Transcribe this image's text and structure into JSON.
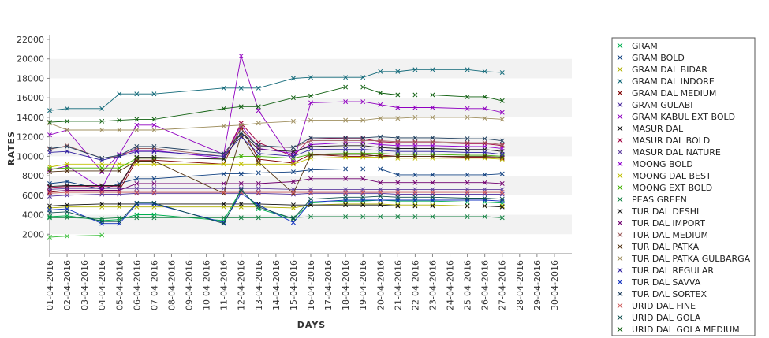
{
  "chart_data": {
    "type": "line",
    "title": "",
    "xlabel": "DAYS",
    "ylabel": "RATES",
    "ylim": [
      0,
      22000
    ],
    "yticks": [
      2000,
      4000,
      6000,
      8000,
      10000,
      12000,
      14000,
      16000,
      18000,
      20000,
      22000
    ],
    "grid": "alternating horizontal bands",
    "legend": "right",
    "x": [
      "01-04-2016",
      "02-04-2016",
      "03-04-2016",
      "04-04-2016",
      "05-04-2016",
      "06-04-2016",
      "07-04-2016",
      "08-04-2016",
      "09-04-2016",
      "10-04-2016",
      "11-04-2016",
      "12-04-2016",
      "13-04-2016",
      "14-04-2016",
      "15-04-2016",
      "16-04-2016",
      "17-04-2016",
      "18-04-2016",
      "19-04-2016",
      "20-04-2016",
      "21-04-2016",
      "22-04-2016",
      "23-04-2016",
      "24-04-2016",
      "25-04-2016",
      "26-04-2016",
      "27-04-2016",
      "28-04-2016",
      "29-04-2016",
      "30-04-2016"
    ],
    "series": [
      {
        "name": "GRAM",
        "color": "#00b050",
        "values": [
          3800,
          3900,
          null,
          3400,
          3500,
          4000,
          4000,
          null,
          null,
          null,
          3400,
          6600,
          4600,
          null,
          3600,
          5200,
          null,
          5400,
          5400,
          5500,
          5400,
          5400,
          5400,
          null,
          5300,
          5300,
          5200,
          null,
          null,
          null
        ]
      },
      {
        "name": "GRAM BOLD",
        "color": "#104080",
        "values": [
          7200,
          7400,
          null,
          6600,
          7200,
          7700,
          7700,
          null,
          null,
          null,
          8200,
          8200,
          8300,
          null,
          8400,
          8600,
          null,
          8700,
          8700,
          8700,
          8100,
          8100,
          8100,
          null,
          8100,
          8100,
          8200,
          null,
          null,
          null
        ]
      },
      {
        "name": "GRAM DAL BIDAR",
        "color": "#b0b000",
        "values": [
          4700,
          4800,
          null,
          4800,
          4800,
          4800,
          4800,
          null,
          null,
          null,
          4800,
          4800,
          4800,
          null,
          4700,
          5000,
          null,
          5100,
          5100,
          5100,
          5000,
          5000,
          5000,
          null,
          4900,
          4900,
          4900,
          null,
          null,
          null
        ]
      },
      {
        "name": "GRAM DAL INDORE",
        "color": "#106878",
        "values": [
          14700,
          14900,
          null,
          14900,
          16400,
          16400,
          16400,
          null,
          null,
          null,
          17000,
          17000,
          17000,
          null,
          18000,
          18100,
          null,
          18100,
          18100,
          18700,
          18700,
          18900,
          18900,
          null,
          18900,
          18700,
          18600,
          null,
          null,
          null
        ]
      },
      {
        "name": "GRAM DAL MEDIUM",
        "color": "#800000",
        "values": [
          6300,
          6500,
          null,
          6500,
          6500,
          9600,
          9600,
          null,
          null,
          null,
          9200,
          13000,
          9700,
          null,
          9300,
          10200,
          null,
          10000,
          10000,
          10100,
          10000,
          10000,
          10000,
          null,
          9900,
          9900,
          9800,
          null,
          null,
          null
        ]
      },
      {
        "name": "GRAM GULABI",
        "color": "#5030a0",
        "values": [
          5900,
          6000,
          null,
          6100,
          6100,
          6200,
          6200,
          null,
          null,
          null,
          6200,
          6200,
          6200,
          null,
          6100,
          6200,
          null,
          6200,
          6200,
          6200,
          6100,
          6100,
          6100,
          null,
          6100,
          6100,
          6100,
          null,
          null,
          null
        ]
      },
      {
        "name": "GRAM KABUL EXT BOLD",
        "color": "#9000c0",
        "values": [
          12200,
          12700,
          null,
          8400,
          10200,
          13200,
          13200,
          null,
          null,
          null,
          10200,
          20300,
          14700,
          null,
          9400,
          15500,
          null,
          15600,
          15600,
          15300,
          15000,
          15000,
          15000,
          null,
          14900,
          14900,
          14500,
          null,
          null,
          null
        ]
      },
      {
        "name": "MASUR DAL",
        "color": "#101010",
        "values": [
          4900,
          5000,
          null,
          5100,
          5100,
          5100,
          5100,
          null,
          null,
          null,
          5100,
          5100,
          5100,
          null,
          5000,
          5000,
          null,
          5000,
          5000,
          5000,
          4900,
          4900,
          4900,
          null,
          4900,
          4900,
          4800,
          null,
          null,
          null
        ]
      },
      {
        "name": "MASUR DAL BOLD",
        "color": "#a00040",
        "values": [
          6800,
          6900,
          null,
          6900,
          6900,
          9800,
          9800,
          null,
          null,
          null,
          9800,
          13400,
          11400,
          null,
          10000,
          11900,
          null,
          11800,
          11800,
          11500,
          11400,
          11400,
          11400,
          null,
          11300,
          11300,
          11100,
          null,
          null,
          null
        ]
      },
      {
        "name": "MASUR DAL NATURE",
        "color": "#6040a0",
        "values": [
          6600,
          6700,
          null,
          6700,
          6700,
          6700,
          6700,
          null,
          null,
          null,
          6700,
          6700,
          6700,
          null,
          6600,
          6600,
          null,
          6600,
          6600,
          6600,
          6600,
          6600,
          6600,
          null,
          6600,
          6600,
          6600,
          null,
          null,
          null
        ]
      },
      {
        "name": "MOONG BOLD",
        "color": "#9000d0",
        "values": [
          8600,
          9000,
          null,
          6700,
          10200,
          10600,
          10600,
          null,
          null,
          null,
          9800,
          13200,
          10800,
          null,
          10300,
          11200,
          null,
          11400,
          11400,
          11200,
          11100,
          11100,
          11100,
          null,
          11000,
          11000,
          10800,
          null,
          null,
          null
        ]
      },
      {
        "name": "MOONG DAL BEST",
        "color": "#c0c000",
        "values": [
          8900,
          9200,
          null,
          9200,
          9200,
          9200,
          9200,
          null,
          null,
          null,
          9200,
          9200,
          9200,
          null,
          9200,
          9800,
          null,
          9900,
          9900,
          9900,
          9800,
          9800,
          9800,
          null,
          9800,
          9800,
          9700,
          null,
          null,
          null
        ]
      },
      {
        "name": "MOONG EXT BOLD",
        "color": "#40b000",
        "values": [
          8700,
          8800,
          null,
          8800,
          8800,
          9800,
          9800,
          null,
          null,
          null,
          9800,
          10000,
          10000,
          null,
          9800,
          10200,
          null,
          10300,
          10300,
          10300,
          10200,
          10200,
          10200,
          null,
          10100,
          10100,
          10000,
          null,
          null,
          null
        ]
      },
      {
        "name": "PEAS GREEN",
        "color": "#108040",
        "values": [
          3700,
          3700,
          null,
          3600,
          3700,
          3700,
          3700,
          null,
          null,
          null,
          3700,
          3700,
          3700,
          null,
          3700,
          3800,
          null,
          3800,
          3800,
          3800,
          3800,
          3800,
          3800,
          null,
          3800,
          3800,
          3700,
          null,
          null,
          null
        ]
      },
      {
        "name": "TUR DAL DESHI",
        "color": "#202020",
        "values": [
          6900,
          7000,
          null,
          7000,
          7000,
          9900,
          9900,
          null,
          null,
          null,
          9700,
          12400,
          10700,
          null,
          10500,
          11000,
          null,
          11100,
          11100,
          10900,
          10800,
          10800,
          10800,
          null,
          10700,
          10700,
          10500,
          null,
          null,
          null
        ]
      },
      {
        "name": "TUR DAL IMPORT",
        "color": "#700070",
        "values": [
          6400,
          6500,
          null,
          6500,
          6500,
          7200,
          7200,
          null,
          null,
          null,
          7200,
          7200,
          7200,
          null,
          7400,
          7700,
          null,
          7700,
          7700,
          7300,
          7300,
          7300,
          7300,
          null,
          7300,
          7300,
          7200,
          null,
          null,
          null
        ]
      },
      {
        "name": "TUR DAL MEDIUM",
        "color": "#a06060",
        "values": [
          10700,
          11100,
          null,
          9800,
          10000,
          10800,
          10800,
          null,
          null,
          null,
          10000,
          12800,
          11000,
          null,
          10900,
          11600,
          null,
          11600,
          11600,
          11600,
          11500,
          11500,
          11500,
          null,
          11400,
          11400,
          11200,
          null,
          null,
          null
        ]
      },
      {
        "name": "TUR DAL PATKA",
        "color": "#503010",
        "values": [
          8400,
          8500,
          null,
          8500,
          8500,
          9500,
          9500,
          null,
          null,
          null,
          6200,
          12200,
          9400,
          null,
          6200,
          10100,
          null,
          10200,
          10200,
          10000,
          10000,
          10000,
          10000,
          null,
          10000,
          10000,
          9900,
          null,
          null,
          null
        ]
      },
      {
        "name": "TUR DAL PATKA GULBARGA",
        "color": "#a09060",
        "values": [
          13400,
          12700,
          null,
          12700,
          12700,
          12700,
          12700,
          null,
          null,
          null,
          13100,
          13200,
          13400,
          null,
          13600,
          13700,
          null,
          13700,
          13700,
          13900,
          13900,
          14000,
          14000,
          null,
          14000,
          13900,
          13800,
          null,
          null,
          null
        ]
      },
      {
        "name": "TUR DAL REGULAR",
        "color": "#3020a0",
        "values": [
          10400,
          10500,
          null,
          9600,
          10000,
          10500,
          10500,
          null,
          null,
          null,
          10000,
          12000,
          10300,
          null,
          10000,
          10700,
          null,
          10700,
          10700,
          10600,
          10500,
          10500,
          10500,
          null,
          10400,
          10400,
          10200,
          null,
          null,
          null
        ]
      },
      {
        "name": "TUR DAL SAVVA",
        "color": "#1030c0",
        "values": [
          4500,
          4600,
          null,
          3100,
          3100,
          5100,
          5100,
          null,
          null,
          null,
          3200,
          6200,
          5000,
          null,
          3200,
          5300,
          null,
          5500,
          5500,
          5500,
          5500,
          5500,
          5500,
          null,
          5500,
          5500,
          5400,
          null,
          null,
          null
        ]
      },
      {
        "name": "TUR DAL SORTEX",
        "color": "#204060",
        "values": [
          10800,
          11000,
          null,
          9800,
          10100,
          11000,
          11000,
          null,
          null,
          null,
          10300,
          12400,
          11100,
          null,
          10900,
          11900,
          null,
          11900,
          11900,
          12000,
          11900,
          11900,
          11900,
          null,
          11800,
          11800,
          11600,
          null,
          null,
          null
        ]
      },
      {
        "name": "URID DAL FINE",
        "color": "#d06060",
        "values": [
          6200,
          6300,
          null,
          6300,
          6300,
          6300,
          6300,
          null,
          null,
          null,
          6300,
          6300,
          6300,
          null,
          6300,
          6300,
          null,
          6300,
          6300,
          6300,
          6300,
          6300,
          6300,
          null,
          6300,
          6300,
          6300,
          null,
          null,
          null
        ]
      },
      {
        "name": "URID DAL GOLA",
        "color": "#105050",
        "values": [
          4200,
          4300,
          null,
          3300,
          3300,
          5200,
          5200,
          null,
          null,
          null,
          3100,
          6500,
          4800,
          null,
          3600,
          5600,
          null,
          5800,
          5800,
          5900,
          5800,
          5800,
          5800,
          null,
          5700,
          5700,
          5600,
          null,
          null,
          null
        ]
      },
      {
        "name": "URID DAL GOLA MEDIUM",
        "color": "#106010",
        "values": [
          13500,
          13600,
          null,
          13600,
          13700,
          13800,
          13800,
          null,
          null,
          null,
          14900,
          15100,
          15100,
          null,
          16000,
          16200,
          null,
          17100,
          17100,
          16500,
          16300,
          16300,
          16300,
          null,
          16100,
          16100,
          15700,
          null,
          null,
          null
        ]
      },
      {
        "name": "",
        "color": "#40c040",
        "values": [
          1700,
          1800,
          null,
          1900,
          null,
          null,
          null,
          null,
          null,
          null,
          null,
          null,
          null,
          null,
          null,
          null,
          null,
          null,
          null,
          null,
          null,
          null,
          null,
          null,
          null,
          null,
          null,
          null,
          null,
          null
        ]
      }
    ]
  }
}
